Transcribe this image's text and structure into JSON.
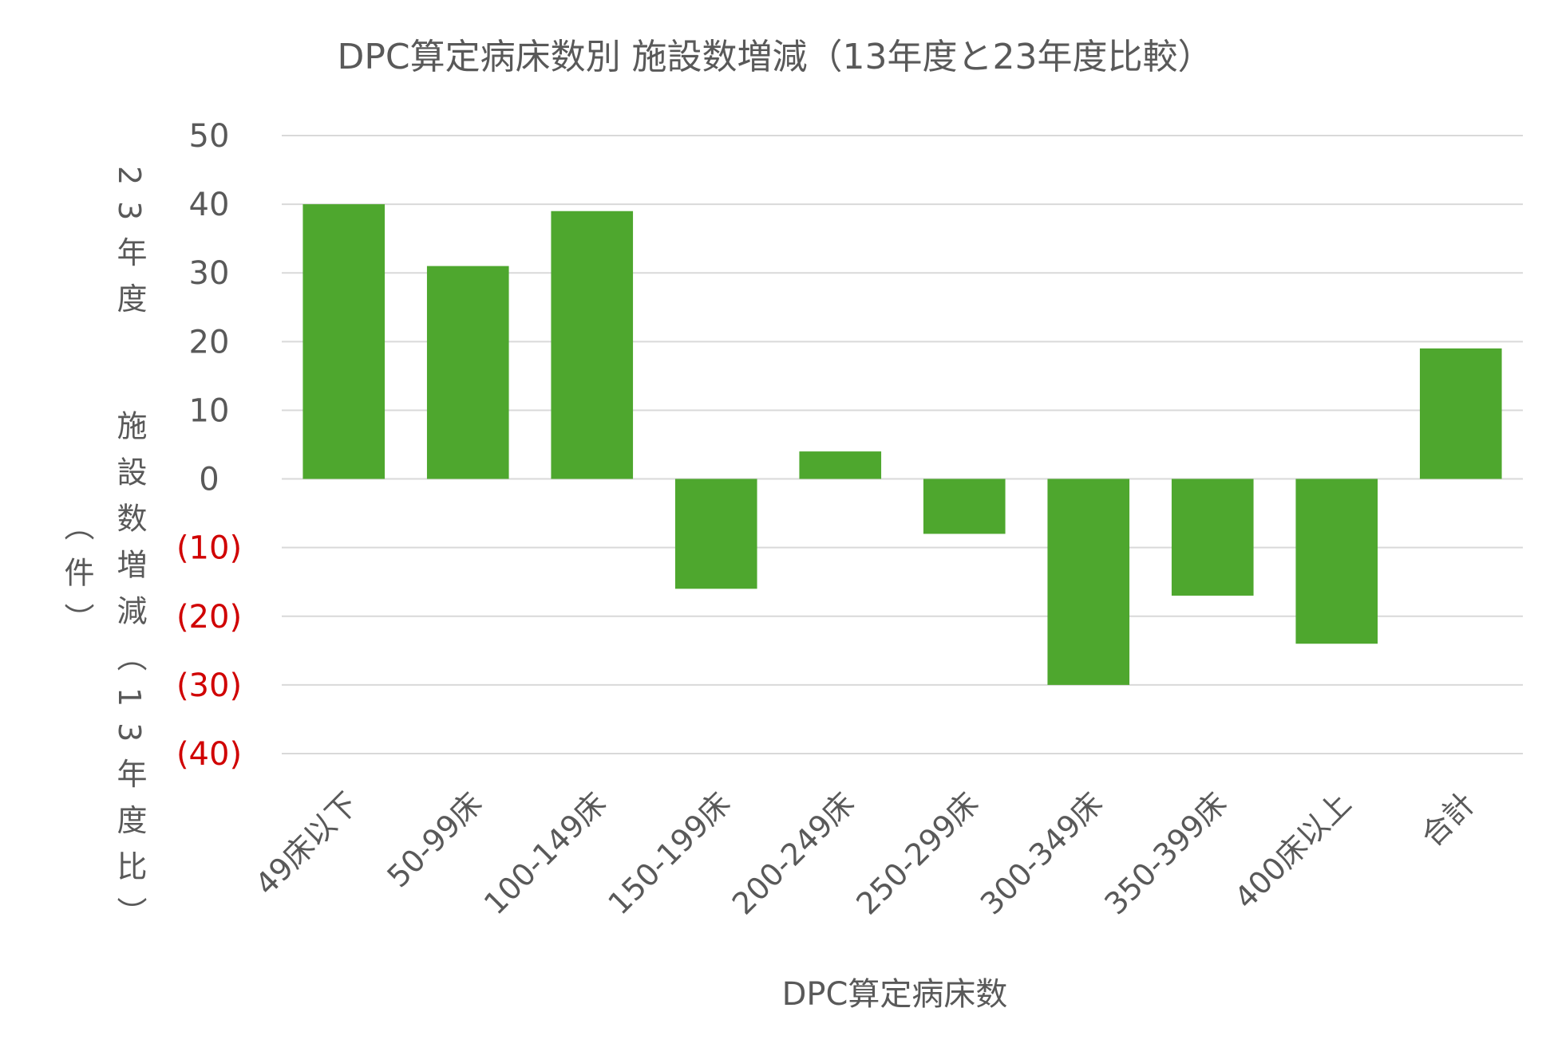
{
  "chart_data": {
    "type": "bar",
    "title": "DPC算定病床数別 施設数増減（13年度と23年度比較）",
    "xlabel": "DPC算定病床数",
    "ylabel_lines": [
      "23年度",
      "施設数増減（13年度比）",
      "（件）"
    ],
    "categories": [
      "49床以下",
      "50-99床",
      "100-149床",
      "150-199床",
      "200-249床",
      "250-299床",
      "300-349床",
      "350-399床",
      "400床以上",
      "合計"
    ],
    "values": [
      40,
      31,
      39,
      -16,
      4,
      -8,
      -30,
      -17,
      -24,
      19
    ],
    "ylim": [
      -40,
      50
    ],
    "yticks": [
      50,
      40,
      30,
      20,
      10,
      0,
      -10,
      -20,
      -30,
      -40
    ],
    "ytick_labels": [
      "50",
      "40",
      "30",
      "20",
      "10",
      "0",
      "(10)",
      "(20)",
      "(30)",
      "(40)"
    ],
    "grid": true,
    "legend": "none",
    "colors": {
      "bar": "#4EA72E",
      "grid": "#D9D9D9",
      "text": "#595959",
      "negative_tick": "#D00000"
    }
  }
}
